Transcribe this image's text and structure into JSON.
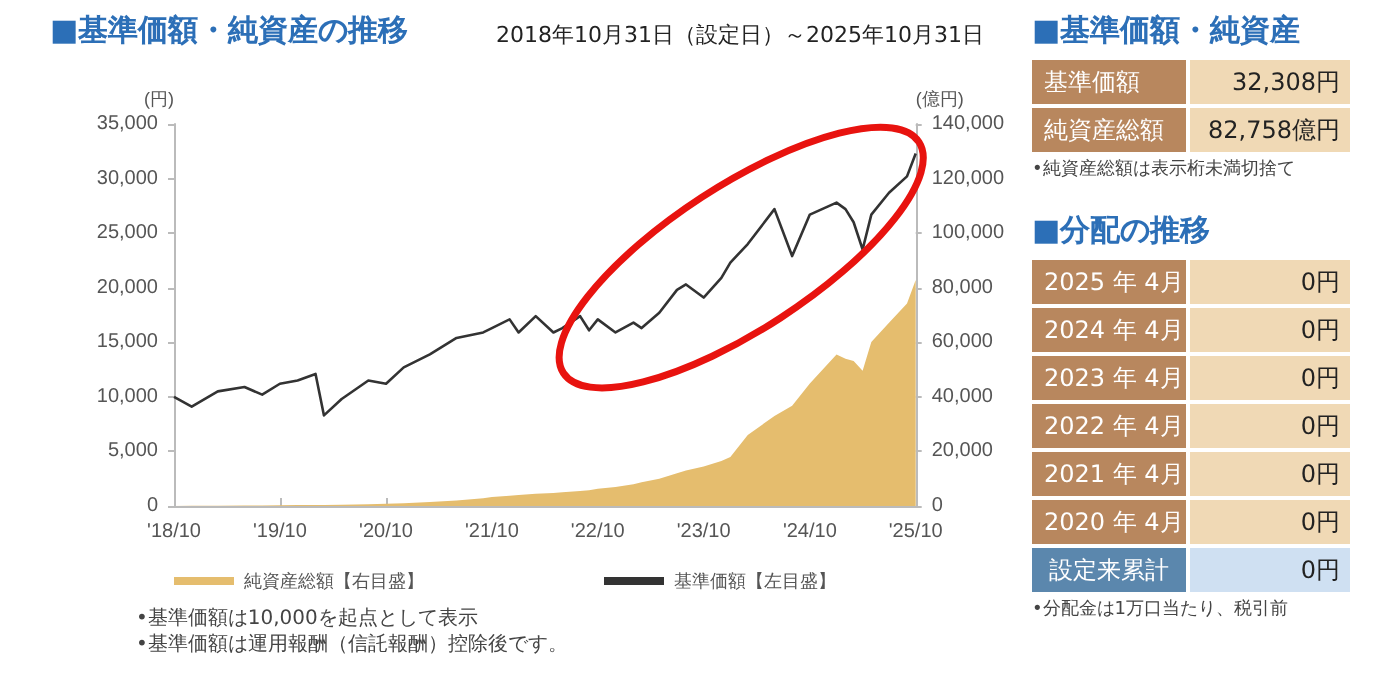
{
  "chart_data": [
    {
      "type": "line",
      "title": "■基準価額・純資産の推移",
      "subtitle": "2018年10月31日（設定日）～2025年10月31日",
      "ylabel": "(円)",
      "y2label": "(億円)",
      "x": [
        "2018-10",
        "2018-12",
        "2019-03",
        "2019-06",
        "2019-08",
        "2019-10",
        "2019-12",
        "2020-02",
        "2020-03",
        "2020-05",
        "2020-08",
        "2020-10",
        "2020-12",
        "2021-03",
        "2021-06",
        "2021-09",
        "2021-10",
        "2021-12",
        "2022-01",
        "2022-03",
        "2022-05",
        "2022-06",
        "2022-08",
        "2022-09",
        "2022-10",
        "2022-12",
        "2023-02",
        "2023-03",
        "2023-05",
        "2023-07",
        "2023-08",
        "2023-10",
        "2023-12",
        "2024-01",
        "2024-03",
        "2024-06",
        "2024-08",
        "2024-10",
        "2025-01",
        "2025-02",
        "2025-03",
        "2025-04",
        "2025-05",
        "2025-07",
        "2025-09",
        "2025-10"
      ],
      "series": [
        {
          "name": "純資産総額【右目盛】",
          "type": "area",
          "axis": "y2",
          "color": "#e5bd6e",
          "values": [
            0,
            100,
            100,
            200,
            200,
            300,
            400,
            400,
            400,
            500,
            600,
            800,
            1000,
            1500,
            2000,
            2800,
            3300,
            3800,
            4000,
            4500,
            4800,
            5000,
            5500,
            5800,
            6300,
            7000,
            8000,
            8700,
            10000,
            12000,
            13000,
            14500,
            16500,
            18000,
            26000,
            33000,
            36700,
            44900,
            55500,
            54000,
            53100,
            49600,
            60100,
            67200,
            74200,
            82800
          ]
        },
        {
          "name": "基準価額【左目盛】",
          "type": "line",
          "color": "#333333",
          "values": [
            10000,
            9100,
            10500,
            10900,
            10200,
            11200,
            11500,
            12100,
            8300,
            9800,
            11500,
            11200,
            12700,
            13900,
            15400,
            15900,
            16300,
            17100,
            15900,
            17400,
            15900,
            16300,
            17400,
            16100,
            17100,
            15900,
            16800,
            16300,
            17700,
            19800,
            20300,
            19100,
            20900,
            22300,
            24000,
            27200,
            22900,
            26700,
            27800,
            27200,
            26000,
            23500,
            26700,
            28700,
            30200,
            32300
          ]
        }
      ],
      "xlim": [
        "2018-10",
        "2025-10"
      ],
      "xticks": [
        {
          "value": "2018-10",
          "label": "'18/10"
        },
        {
          "value": "2019-10",
          "label": "'19/10"
        },
        {
          "value": "2020-10",
          "label": "'20/10"
        },
        {
          "value": "2021-10",
          "label": "'21/10"
        },
        {
          "value": "2022-10",
          "label": "'22/10"
        },
        {
          "value": "2023-10",
          "label": "'23/10"
        },
        {
          "value": "2024-10",
          "label": "'24/10"
        },
        {
          "value": "2025-10",
          "label": "'25/10"
        }
      ],
      "ylim": [
        0,
        35000
      ],
      "yticks": [
        0,
        {
          "value": 5000,
          "label": "5,000"
        },
        {
          "value": 10000,
          "label": "10,000"
        },
        {
          "value": 15000,
          "label": "15,000"
        },
        {
          "value": 20000,
          "label": "20,000"
        },
        {
          "value": 25000,
          "label": "25,000"
        },
        {
          "value": 30000,
          "label": "30,000"
        },
        {
          "value": 35000,
          "label": "35,000"
        }
      ],
      "y2lim": [
        0,
        140000
      ],
      "y2ticks": [
        0,
        {
          "value": 20000,
          "label": "20,000"
        },
        {
          "value": 40000,
          "label": "40,000"
        },
        {
          "value": 60000,
          "label": "60,000"
        },
        {
          "value": 80000,
          "label": "80,000"
        },
        {
          "value": 100000,
          "label": "100,000"
        },
        {
          "value": 120000,
          "label": "120,000"
        },
        {
          "value": 140000,
          "label": "140,000"
        }
      ],
      "grid": false,
      "legend": "bottom",
      "annotations": [
        "•基準価額は10,000を起点として表示",
        "•基準価額は運用報酬（信託報酬）控除後です。"
      ]
    },
    {
      "type": "other",
      "title": "■基準価額・純資産",
      "annotations": [
        "基準価額",
        "32,308円",
        "純資産総額",
        "82,758億円",
        "•純資産総額は表示桁未満切捨て"
      ]
    },
    {
      "type": "other",
      "title": "■分配の推移",
      "annotations": [
        "2025 年  4月",
        "0円",
        "2024 年  4月",
        "0円",
        "2023 年  4月",
        "0円",
        "2022 年  4月",
        "0円",
        "2021 年  4月",
        "0円",
        "2020 年  4月",
        "0円",
        "設定来累計",
        "0円",
        "•分配金は1万口当たり、税引前"
      ]
    }
  ]
}
